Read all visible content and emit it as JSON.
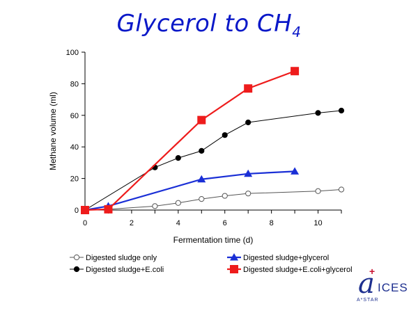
{
  "slide": {
    "title": "Glycerol to CH",
    "title_sub": "4"
  },
  "logo": {
    "text": "ICES",
    "sub": "A*STAR"
  },
  "chart_data": {
    "type": "line",
    "title": "",
    "xlabel": "Fermentation time (d)",
    "ylabel": "Methane  volume (ml)",
    "xlim": [
      0,
      11
    ],
    "ylim": [
      0,
      100
    ],
    "xticks": [
      0,
      2,
      4,
      6,
      8,
      10
    ],
    "yticks": [
      0,
      20,
      40,
      60,
      80,
      100
    ],
    "grid": false,
    "legend_position": "bottom",
    "series": [
      {
        "name": "Digested sludge only",
        "marker": "circle-open",
        "color": "#555555",
        "x": [
          0,
          1,
          3,
          4,
          5,
          6,
          7,
          10,
          11
        ],
        "y": [
          0,
          0.5,
          2.5,
          4.5,
          7,
          9,
          10.5,
          12,
          13
        ]
      },
      {
        "name": "Digested sludge+E.coli",
        "marker": "circle-filled",
        "color": "#000000",
        "x": [
          0,
          3,
          4,
          5,
          6,
          7,
          10,
          11
        ],
        "y": [
          0,
          27,
          33,
          37.5,
          47.5,
          55.5,
          61.5,
          63
        ]
      },
      {
        "name": "Digested sludge+glycerol",
        "marker": "triangle",
        "color": "#1a2fd6",
        "x": [
          0,
          1,
          5,
          7,
          9
        ],
        "y": [
          0,
          2.5,
          19.5,
          23,
          24.5
        ]
      },
      {
        "name": "Digested sludge+E.coli+glycerol",
        "marker": "square",
        "color": "#ee1c1c",
        "x": [
          0,
          1,
          5,
          7,
          9
        ],
        "y": [
          0,
          0.5,
          57,
          77,
          88
        ]
      }
    ]
  }
}
